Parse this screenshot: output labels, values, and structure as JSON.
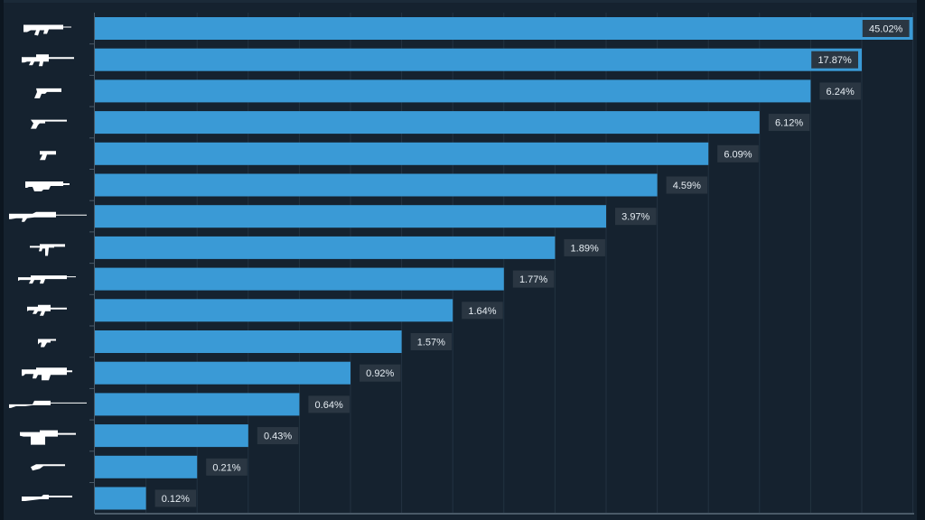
{
  "chart_data": {
    "type": "bar",
    "orientation": "horizontal",
    "title": "",
    "xlabel": "",
    "ylabel": "",
    "value_format": "percent",
    "scale": "rank-stepped (bar length by rank, not proportional)",
    "grid": true,
    "legend": "none",
    "categories": [
      "assault-rifle-ak",
      "battle-rifle",
      "revolver",
      "long-barrel-pistol",
      "pistol",
      "bullpup-rifle",
      "sniper-rifle",
      "pdw-smg",
      "designated-marksman-rifle",
      "smg",
      "machine-pistol",
      "heavy-rifle",
      "scoped-bolt-rifle",
      "light-machine-gun",
      "sawed-off-shotgun",
      "pump-shotgun"
    ],
    "values": [
      45.02,
      17.87,
      6.24,
      6.12,
      6.09,
      4.59,
      3.97,
      1.89,
      1.77,
      1.64,
      1.57,
      0.92,
      0.64,
      0.43,
      0.21,
      0.12
    ],
    "labels": [
      "45.02%",
      "17.87%",
      "6.24%",
      "6.12%",
      "6.09%",
      "4.59%",
      "3.97%",
      "1.89%",
      "1.77%",
      "1.64%",
      "1.57%",
      "0.92%",
      "0.64%",
      "0.43%",
      "0.21%",
      "0.12%"
    ],
    "colors": {
      "bar": "#3a9ad6",
      "background": "#15222f",
      "grid": "#233341",
      "axis": "#4a5a68",
      "label_bg": "#2a3642",
      "label_text": "#e6edf3",
      "icon": "#ffffff"
    }
  }
}
